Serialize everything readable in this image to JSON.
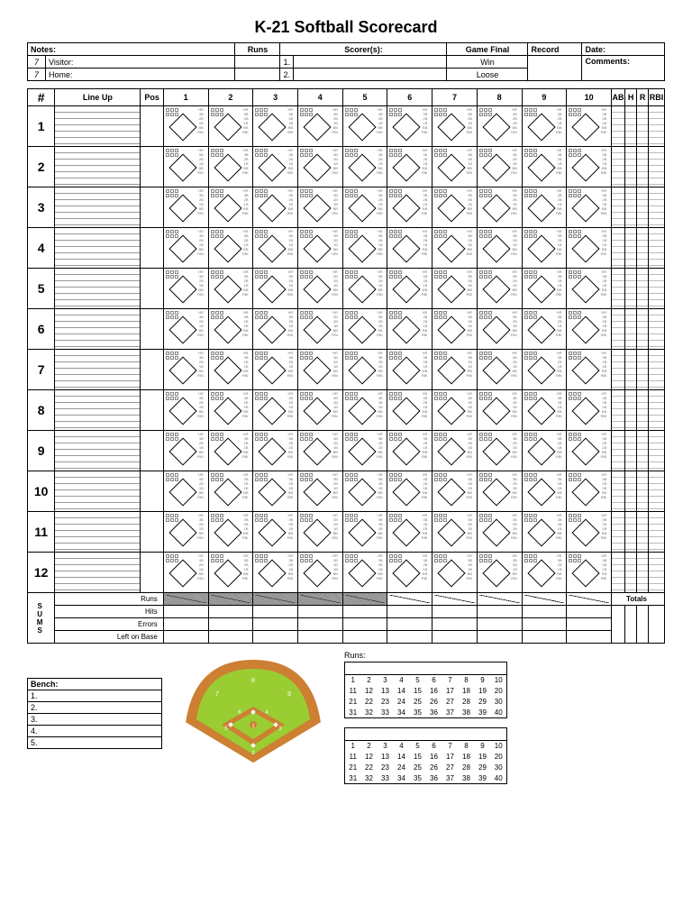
{
  "title": "K-21 Softball Scorecard",
  "header": {
    "notes": "Notes:",
    "visitor_num": "7",
    "visitor": "Visitor:",
    "home_num": "7",
    "home": "Home:",
    "runs": "Runs",
    "scorers": "Scorer(s):",
    "one": "1.",
    "two": "2.",
    "game_final": "Game Final",
    "win": "Win",
    "loose": "Loose",
    "record": "Record",
    "date": "Date:",
    "comments": "Comments:"
  },
  "columns": {
    "num": "#",
    "lineup": "Line Up",
    "pos": "Pos",
    "innings": [
      "1",
      "2",
      "3",
      "4",
      "5",
      "6",
      "7",
      "8",
      "9",
      "10"
    ],
    "stats": [
      "AB",
      "H",
      "R",
      "RBI"
    ]
  },
  "player_numbers": [
    "1",
    "2",
    "3",
    "4",
    "5",
    "6",
    "7",
    "8",
    "9",
    "10",
    "11",
    "12"
  ],
  "cell_markers": [
    "HR",
    "3B",
    "2B",
    "1B",
    "BB",
    "RBI"
  ],
  "sums": {
    "side_label": "SUMS",
    "rows": [
      "Runs",
      "Hits",
      "Errors",
      "Left on Base"
    ],
    "totals": "Totals"
  },
  "field": {
    "positions": [
      "1",
      "2",
      "3",
      "4",
      "5",
      "6",
      "7",
      "8",
      "9"
    ],
    "grass_color": "#9acd32",
    "dirt_color": "#cd7f32",
    "line_color": "#ffffff"
  },
  "runs_label": "Runs:",
  "runs_grid": [
    [
      1,
      2,
      3,
      4,
      5,
      6,
      7,
      8,
      9,
      10
    ],
    [
      11,
      12,
      13,
      14,
      15,
      16,
      17,
      18,
      19,
      20
    ],
    [
      21,
      22,
      23,
      24,
      25,
      26,
      27,
      28,
      29,
      30
    ],
    [
      31,
      32,
      33,
      34,
      35,
      36,
      37,
      38,
      39,
      40
    ]
  ],
  "bench": {
    "label": "Bench:",
    "rows": [
      "1.",
      "2.",
      "3.",
      "4.",
      "5."
    ]
  }
}
